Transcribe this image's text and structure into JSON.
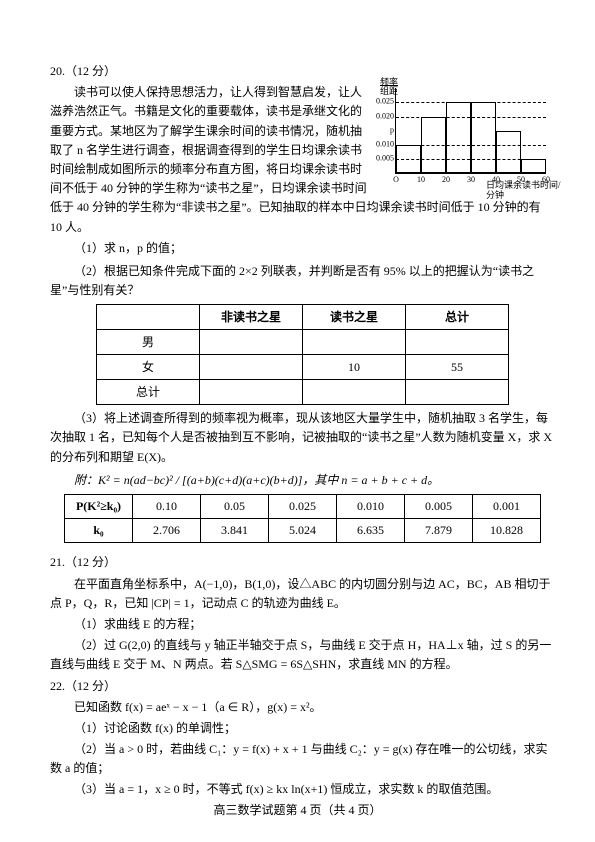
{
  "q20": {
    "num": "20.（12 分）",
    "body1": "读书可以使人保持思想活力，让人得到智慧启发，让人滋养浩然正气。书籍是文化的重要载体，读书是承继文化的重要方式。某地区为了解学生课余时间的读书情况，随机抽取了 n 名学生进行调查，根据调查得到的学生日均课余读书时间绘制成如图所示的频率分布直方图，将日均课余读书时间不低于 40 分钟的学生称为“读书之星”，日均课余读书时间低于 40 分钟的学生称为“非读书之星”。已知抽取的样本中日均课余读书时间低于 10 分钟的有 10 人。",
    "part1": "（1）求 n，p 的值；",
    "part2": "（2）根据已知条件完成下面的 2×2 列联表，并判断是否有 95% 以上的把握认为“读书之星”与性别有关？",
    "part3": "（3）将上述调查所得到的频率视为概率，现从该地区大量学生中，随机抽取 3 名学生，每次抽取 1 名，已知每个人是否被抽到互不影响，记被抽取的“读书之星”人数为随机变量 X，求 X 的分布列和期望 E(X)。",
    "formula_label": "附：K² =",
    "formula_body": "n(ad−bc)² / [(a+b)(c+d)(a+c)(b+d)]，其中 n = a + b + c + d。",
    "t1": {
      "hdr": [
        "",
        "非读书之星",
        "读书之星",
        "总计"
      ],
      "r1": [
        "男",
        "",
        "",
        ""
      ],
      "r2": [
        "女",
        "",
        "10",
        "55"
      ],
      "r3": [
        "总计",
        "",
        "",
        ""
      ]
    },
    "t2": {
      "r1": [
        "P(K²≥k₀)",
        "0.10",
        "0.05",
        "0.025",
        "0.010",
        "0.005",
        "0.001"
      ],
      "r2": [
        "k₀",
        "2.706",
        "3.841",
        "5.024",
        "6.635",
        "7.879",
        "10.828"
      ]
    },
    "chart": {
      "y_label_top": "频率",
      "y_label_bot": "组距",
      "x_label": "日均课余读书时间/分钟",
      "y_ticks": [
        "0.005",
        "0.010",
        "p",
        "0.020",
        "0.025"
      ],
      "x_ticks": [
        "O",
        "10",
        "20",
        "30",
        "40",
        "50",
        "60"
      ],
      "bars": [
        0.01,
        0.02,
        0.025,
        0.025,
        0.015,
        0.005
      ],
      "ymax": 0.03
    }
  },
  "q21": {
    "num": "21.（12 分）",
    "body1": "在平面直角坐标系中，A(−1,0)，B(1,0)，设△ABC 的内切圆分别与边 AC，BC，AB 相切于点 P，Q，R，已知 |CP| = 1，记动点 C 的轨迹为曲线 E。",
    "part1": "（1）求曲线 E 的方程；",
    "part2": "（2）过 G(2,0) 的直线与 y 轴正半轴交于点 S，与曲线 E 交于点 H，HA⊥x 轴，过 S 的另一直线与曲线 E 交于 M、N 两点。若 S△SMG = 6S△SHN，求直线 MN 的方程。"
  },
  "q22": {
    "num": "22.（12 分）",
    "body1": "已知函数 f(x) = aeˣ − x − 1（a ∈ R），g(x) = x²。",
    "part1": "（1）讨论函数 f(x) 的单调性；",
    "part2": "（2）当 a > 0 时，若曲线 C₁：y = f(x) + x + 1 与曲线 C₂：y = g(x) 存在唯一的公切线，求实数 a 的值；",
    "part3": "（3）当 a = 1，x ≥ 0 时，不等式 f(x) ≥ kx ln(x+1) 恒成立，求实数 k 的取值范围。"
  },
  "footer": "高三数学试题第 4 页（共 4 页）"
}
